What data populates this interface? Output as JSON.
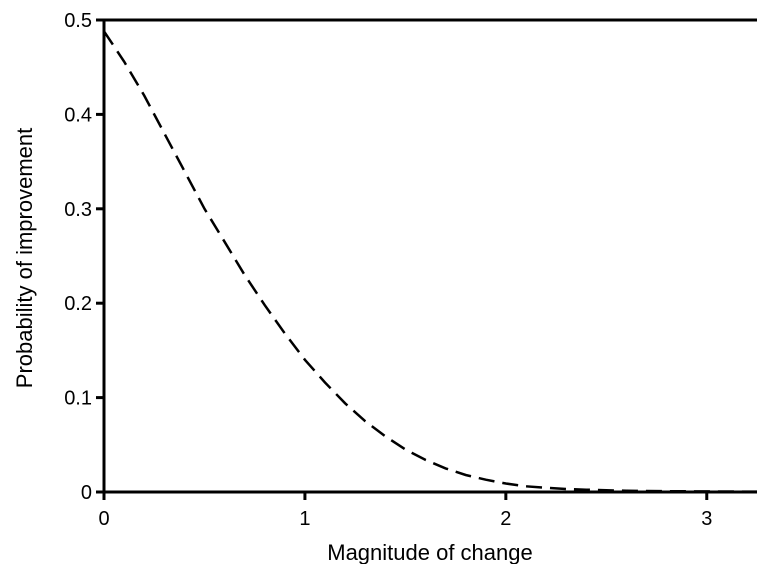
{
  "chart_data": {
    "type": "line",
    "title": "",
    "xlabel": "Magnitude of change",
    "ylabel": "Probability of improvement",
    "xlim": [
      0,
      3.25
    ],
    "ylim": [
      0,
      0.5
    ],
    "x_ticks": [
      0,
      1,
      2,
      3
    ],
    "x_tick_labels": [
      "0",
      "1",
      "2",
      "3"
    ],
    "y_ticks": [
      0,
      0.1,
      0.2,
      0.3,
      0.4,
      0.5
    ],
    "y_tick_labels": [
      "0",
      "0.1",
      "0.2",
      "0.3",
      "0.4",
      "0.5"
    ],
    "grid": false,
    "series": [
      {
        "line_style": "dashed",
        "color": "#000000",
        "x": [
          0,
          0.1,
          0.2,
          0.3,
          0.4,
          0.5,
          0.6,
          0.7,
          0.8,
          0.9,
          1.0,
          1.1,
          1.2,
          1.3,
          1.4,
          1.5,
          1.6,
          1.7,
          1.8,
          1.9,
          2.0,
          2.1,
          2.2,
          2.3,
          2.4,
          2.5,
          2.6,
          2.7,
          2.8,
          2.9,
          3.0,
          3.1,
          3.2,
          3.25
        ],
        "y": [
          0.488,
          0.456,
          0.42,
          0.38,
          0.34,
          0.3,
          0.265,
          0.23,
          0.198,
          0.168,
          0.14,
          0.116,
          0.094,
          0.075,
          0.059,
          0.045,
          0.034,
          0.025,
          0.018,
          0.013,
          0.009,
          0.006,
          0.0045,
          0.0032,
          0.0024,
          0.0018,
          0.0014,
          0.0011,
          0.0009,
          0.0007,
          0.0006,
          0.0005,
          0.0004,
          0.0004
        ]
      }
    ]
  }
}
